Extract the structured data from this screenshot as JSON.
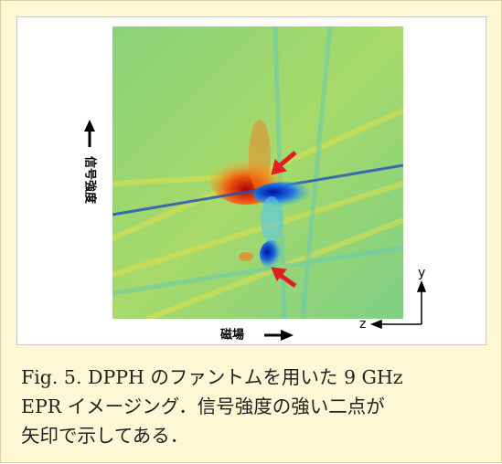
{
  "figure": {
    "y_axis_label": "信号強度",
    "x_axis_label": "磁場",
    "axis_y": "y",
    "axis_z": "z"
  },
  "caption": {
    "lines": [
      "Fig. 5. DPPH のファントムを用いた 9 GHz",
      "EPR イメージング．信号強度の強い二点が",
      "矢印で示してある．"
    ]
  }
}
